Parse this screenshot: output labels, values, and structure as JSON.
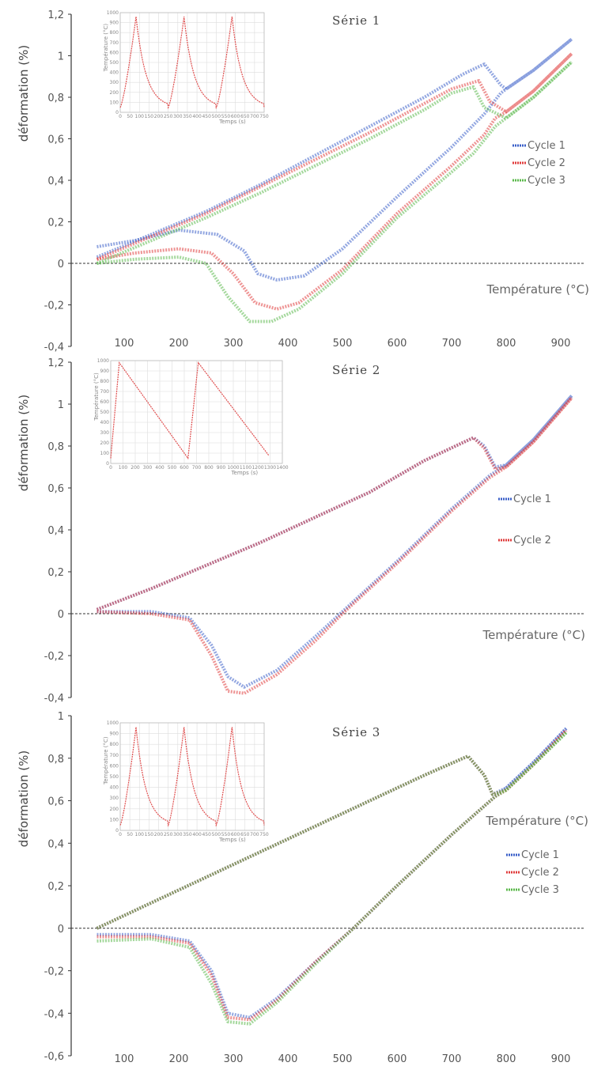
{
  "chart_data": [
    {
      "type": "line",
      "title": "Série 1",
      "xlabel": "Température (°C)",
      "ylabel": "déformation (%)",
      "xlim": [
        50,
        940
      ],
      "ylim": [
        -0.4,
        1.2
      ],
      "xticks": [
        100,
        200,
        300,
        400,
        500,
        600,
        700,
        800,
        900
      ],
      "yticks": [
        -0.4,
        -0.2,
        0,
        0.2,
        0.4,
        0.6,
        0.8,
        1,
        1.2
      ],
      "xtick_labels": [
        "100",
        "200",
        "300",
        "400",
        "500",
        "600",
        "700",
        "800",
        "900"
      ],
      "ytick_labels": [
        "-0,4",
        "-0,2",
        "0",
        "0,2",
        "0,4",
        "0,6",
        "0,8",
        "1",
        "1,2"
      ],
      "legend_position": "right",
      "series": [
        {
          "name": "Cycle 1",
          "color": "#3a5fc8",
          "x": [
            50,
            120,
            200,
            270,
            320,
            345,
            380,
            430,
            500,
            600,
            700,
            760,
            790,
            800,
            850,
            920
          ],
          "y": [
            0.08,
            0.11,
            0.16,
            0.14,
            0.06,
            -0.05,
            -0.08,
            -0.06,
            0.07,
            0.32,
            0.56,
            0.72,
            0.82,
            0.84,
            0.93,
            1.08
          ]
        },
        {
          "name": "Cycle 2",
          "color": "#e03c3c",
          "x": [
            50,
            120,
            200,
            260,
            300,
            340,
            380,
            420,
            500,
            600,
            700,
            760,
            780,
            800,
            850,
            920
          ],
          "y": [
            0.02,
            0.05,
            0.07,
            0.05,
            -0.05,
            -0.19,
            -0.22,
            -0.19,
            -0.03,
            0.24,
            0.47,
            0.62,
            0.7,
            0.73,
            0.83,
            1.01
          ]
        },
        {
          "name": "Cycle 3",
          "color": "#5ab84a",
          "x": [
            50,
            120,
            200,
            250,
            290,
            330,
            370,
            420,
            500,
            600,
            700,
            740,
            780,
            800,
            850,
            920
          ],
          "y": [
            0.0,
            0.02,
            0.03,
            0.0,
            -0.16,
            -0.28,
            -0.28,
            -0.22,
            -0.05,
            0.22,
            0.44,
            0.53,
            0.66,
            0.7,
            0.8,
            0.97
          ]
        }
      ],
      "upper_branches": [
        {
          "x": [
            50,
            150,
            250,
            350,
            450,
            550,
            650,
            720,
            760,
            790,
            800,
            850,
            920
          ],
          "y": [
            0.03,
            0.14,
            0.25,
            0.38,
            0.52,
            0.66,
            0.8,
            0.91,
            0.96,
            0.86,
            0.84,
            0.93,
            1.08
          ]
        },
        {
          "x": [
            50,
            150,
            250,
            350,
            450,
            550,
            650,
            700,
            750,
            770,
            800,
            850,
            920
          ],
          "y": [
            0.02,
            0.13,
            0.24,
            0.37,
            0.5,
            0.63,
            0.77,
            0.84,
            0.88,
            0.78,
            0.73,
            0.83,
            1.01
          ]
        },
        {
          "x": [
            50,
            150,
            250,
            350,
            450,
            550,
            650,
            700,
            740,
            760,
            800,
            850,
            920
          ],
          "y": [
            0.0,
            0.11,
            0.22,
            0.34,
            0.47,
            0.6,
            0.74,
            0.82,
            0.85,
            0.75,
            0.7,
            0.8,
            0.97
          ]
        }
      ],
      "inset": {
        "xlabel": "Temps (s)",
        "ylabel": "Température (°C)",
        "xticks": [
          "0",
          "50",
          "100",
          "150",
          "200",
          "250",
          "300",
          "350",
          "400",
          "450",
          "500",
          "550",
          "600",
          "650",
          "700",
          "750"
        ],
        "yticks": [
          "0",
          "100",
          "200",
          "300",
          "400",
          "500",
          "600",
          "700",
          "800",
          "900",
          "1000"
        ],
        "peaks": [
          3
        ],
        "shape": "smooth"
      }
    },
    {
      "type": "line",
      "title": "Série 2",
      "xlabel": "Température (°C)",
      "ylabel": "déformation (%)",
      "xlim": [
        50,
        940
      ],
      "ylim": [
        -0.4,
        1.2
      ],
      "xticks": [
        100,
        200,
        300,
        400,
        500,
        600,
        700,
        800,
        900
      ],
      "yticks": [
        -0.4,
        -0.2,
        0,
        0.2,
        0.4,
        0.6,
        0.8,
        1,
        1.2
      ],
      "xtick_labels": [],
      "ytick_labels": [
        "-0,4",
        "-0,2",
        "0",
        "0,2",
        "0,4",
        "0,6",
        "0,8",
        "1",
        "1,2"
      ],
      "legend_position": "right",
      "series": [
        {
          "name": "Cycle 1",
          "color": "#3a5fc8",
          "x": [
            50,
            150,
            220,
            260,
            290,
            320,
            380,
            450,
            500,
            600,
            700,
            770,
            800,
            850,
            920
          ],
          "y": [
            0.01,
            0.01,
            -0.02,
            -0.15,
            -0.3,
            -0.35,
            -0.27,
            -0.11,
            0.01,
            0.25,
            0.5,
            0.66,
            0.71,
            0.83,
            1.04
          ]
        },
        {
          "name": "Cycle 2",
          "color": "#e03c3c",
          "x": [
            50,
            150,
            220,
            260,
            290,
            320,
            380,
            450,
            500,
            600,
            700,
            770,
            800,
            850,
            920
          ],
          "y": [
            0.01,
            0.0,
            -0.03,
            -0.2,
            -0.37,
            -0.38,
            -0.29,
            -0.13,
            0.0,
            0.24,
            0.49,
            0.65,
            0.7,
            0.82,
            1.03
          ]
        }
      ],
      "upper_branches": [
        {
          "x": [
            50,
            150,
            250,
            350,
            450,
            550,
            650,
            740,
            760,
            780,
            800,
            850,
            920
          ],
          "y": [
            0.02,
            0.12,
            0.23,
            0.34,
            0.46,
            0.58,
            0.73,
            0.84,
            0.8,
            0.7,
            0.71,
            0.83,
            1.04
          ]
        },
        {
          "x": [
            50,
            150,
            250,
            350,
            450,
            550,
            650,
            740,
            760,
            780,
            800,
            850,
            920
          ],
          "y": [
            0.02,
            0.12,
            0.23,
            0.34,
            0.46,
            0.58,
            0.73,
            0.84,
            0.79,
            0.69,
            0.7,
            0.82,
            1.03
          ]
        }
      ],
      "inset": {
        "xlabel": "Temps (s)",
        "ylabel": "Température (°C)",
        "xticks": [
          "0",
          "100",
          "200",
          "300",
          "400",
          "500",
          "600",
          "700",
          "800",
          "900",
          "1000",
          "1100",
          "1200",
          "1300",
          "1400"
        ],
        "yticks": [
          "0",
          "100",
          "200",
          "300",
          "400",
          "500",
          "600",
          "700",
          "800",
          "900",
          "1000"
        ],
        "peaks": [
          2
        ],
        "shape": "sawtooth"
      }
    },
    {
      "type": "line",
      "title": "Série 3",
      "xlabel": "Température (°C)",
      "ylabel": "déformation (%)",
      "xlim": [
        50,
        940
      ],
      "ylim": [
        -0.6,
        1.0
      ],
      "xticks": [
        100,
        200,
        300,
        400,
        500,
        600,
        700,
        800,
        900
      ],
      "yticks": [
        -0.6,
        -0.4,
        -0.2,
        0,
        0.2,
        0.4,
        0.6,
        0.8,
        1
      ],
      "xtick_labels": [
        "100",
        "200",
        "300",
        "400",
        "500",
        "600",
        "700",
        "800",
        "900"
      ],
      "ytick_labels": [
        "-0,6",
        "-0,4",
        "-0,2",
        "0",
        "0,2",
        "0,4",
        "0,6",
        "0,8",
        "1"
      ],
      "legend_position": "right",
      "series": [
        {
          "name": "Cycle 1",
          "color": "#3a5fc8",
          "x": [
            50,
            150,
            220,
            260,
            290,
            330,
            380,
            450,
            520,
            600,
            700,
            780,
            800,
            850,
            910
          ],
          "y": [
            -0.03,
            -0.03,
            -0.06,
            -0.2,
            -0.4,
            -0.42,
            -0.33,
            -0.16,
            0.0,
            0.2,
            0.44,
            0.62,
            0.66,
            0.78,
            0.94
          ]
        },
        {
          "name": "Cycle 2",
          "color": "#e03c3c",
          "x": [
            50,
            150,
            220,
            260,
            290,
            330,
            380,
            450,
            520,
            600,
            700,
            780,
            800,
            850,
            910
          ],
          "y": [
            -0.04,
            -0.04,
            -0.07,
            -0.22,
            -0.42,
            -0.43,
            -0.34,
            -0.16,
            0.0,
            0.2,
            0.44,
            0.62,
            0.65,
            0.77,
            0.93
          ]
        },
        {
          "name": "Cycle 3",
          "color": "#5ab84a",
          "x": [
            50,
            150,
            220,
            260,
            290,
            330,
            380,
            450,
            520,
            600,
            700,
            780,
            800,
            850,
            910
          ],
          "y": [
            -0.06,
            -0.05,
            -0.09,
            -0.26,
            -0.44,
            -0.45,
            -0.35,
            -0.17,
            0.0,
            0.2,
            0.44,
            0.62,
            0.65,
            0.77,
            0.92
          ]
        }
      ],
      "upper_branches": [
        {
          "x": [
            50,
            150,
            250,
            350,
            450,
            550,
            650,
            730,
            760,
            775,
            800,
            850,
            910
          ],
          "y": [
            0.0,
            0.12,
            0.24,
            0.36,
            0.48,
            0.6,
            0.72,
            0.81,
            0.72,
            0.63,
            0.66,
            0.78,
            0.94
          ]
        },
        {
          "x": [
            50,
            150,
            250,
            350,
            450,
            550,
            650,
            730,
            760,
            775,
            800,
            850,
            910
          ],
          "y": [
            0.0,
            0.12,
            0.24,
            0.36,
            0.48,
            0.6,
            0.72,
            0.81,
            0.72,
            0.63,
            0.65,
            0.77,
            0.93
          ]
        },
        {
          "x": [
            50,
            150,
            250,
            350,
            450,
            550,
            650,
            730,
            760,
            775,
            800,
            850,
            910
          ],
          "y": [
            0.0,
            0.12,
            0.24,
            0.36,
            0.48,
            0.6,
            0.72,
            0.81,
            0.72,
            0.63,
            0.65,
            0.77,
            0.92
          ]
        }
      ],
      "inset": {
        "xlabel": "Temps (s)",
        "ylabel": "Température (°C)",
        "xticks": [
          "0",
          "50",
          "100",
          "150",
          "200",
          "250",
          "300",
          "350",
          "400",
          "450",
          "500",
          "550",
          "600",
          "650",
          "700",
          "750"
        ],
        "yticks": [
          "0",
          "100",
          "200",
          "300",
          "400",
          "500",
          "600",
          "700",
          "800",
          "900",
          "1000"
        ],
        "peaks": [
          3
        ],
        "shape": "smooth"
      }
    }
  ]
}
